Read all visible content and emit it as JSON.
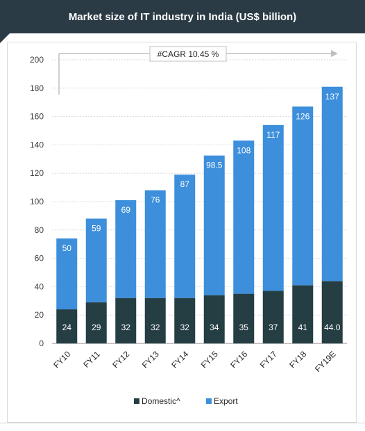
{
  "header": {
    "title": "Market size of IT industry in India (US$ billion)"
  },
  "colors": {
    "title_bg": "#2b3b45",
    "domestic": "#253e43",
    "export": "#3d8fdc",
    "grid": "#d9d9d9"
  },
  "annotation": {
    "cagr": "#CAGR 10.45 %"
  },
  "chart_data": {
    "type": "bar",
    "stacked": true,
    "title": "Market size of IT industry in India (US$ billion)",
    "categories": [
      "FY10",
      "FY11",
      "FY12",
      "FY13",
      "FY14",
      "FY15",
      "FY16",
      "FY17",
      "FY18",
      "FY19E"
    ],
    "series": [
      {
        "name": "Domestic^",
        "values": [
          24,
          29,
          32,
          32,
          32,
          34,
          35,
          37,
          41,
          44.0
        ],
        "labels": [
          "24",
          "29",
          "32",
          "32",
          "32",
          "34",
          "35",
          "37",
          "41",
          "44.0"
        ],
        "color": "#253e43"
      },
      {
        "name": "Export",
        "values": [
          50,
          59,
          69,
          76,
          87,
          98.5,
          108,
          117,
          126,
          137
        ],
        "labels": [
          "50",
          "59",
          "69",
          "76",
          "87",
          "98.5",
          "108",
          "117",
          "126",
          "137"
        ],
        "color": "#3d8fdc"
      }
    ],
    "ylim": [
      0,
      200
    ],
    "yticks": [
      0,
      20,
      40,
      60,
      80,
      100,
      120,
      140,
      160,
      180,
      200
    ],
    "grid": true,
    "legend": "bottom",
    "xlabel": "",
    "ylabel": ""
  }
}
